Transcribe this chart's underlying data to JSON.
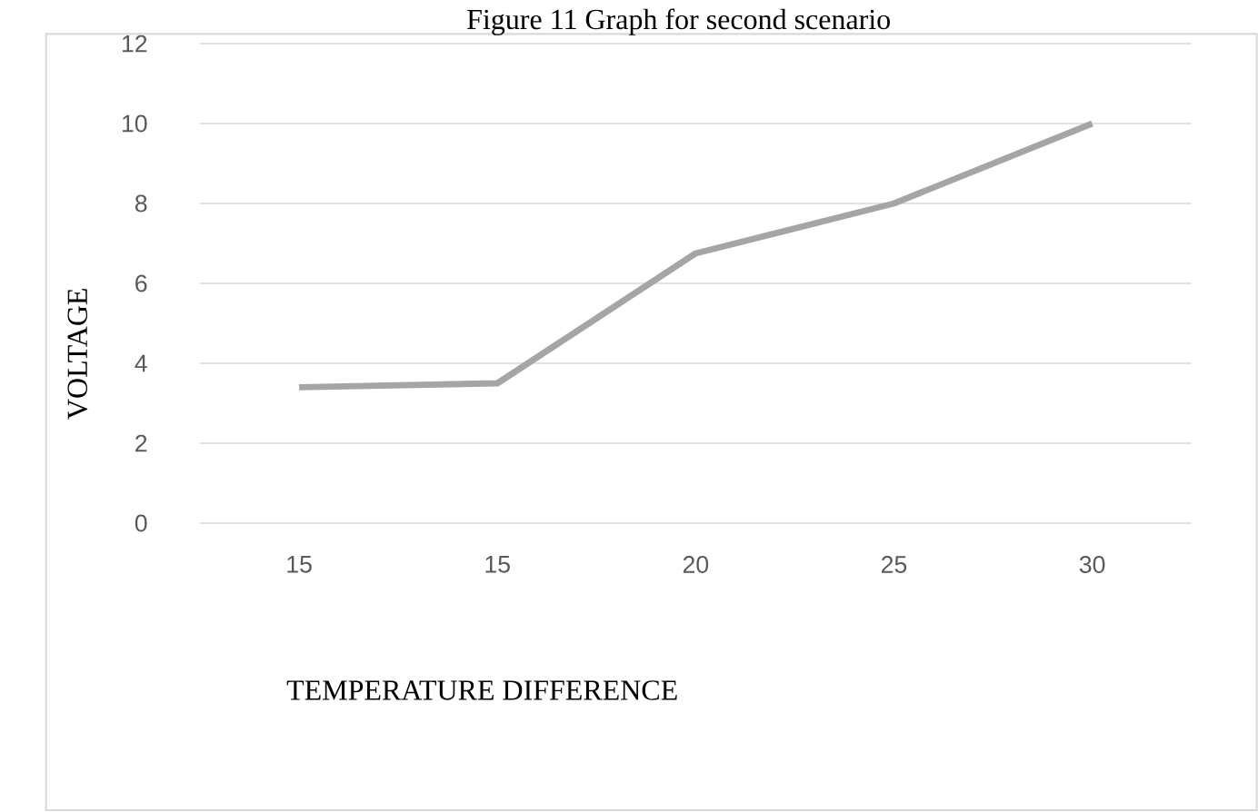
{
  "chart_data": {
    "type": "line",
    "title": "Figure 11 Graph for second scenario",
    "xlabel": "TEMPERATURE DIFFERENCE",
    "ylabel": "VOLTAGE",
    "categories": [
      "15",
      "15",
      "20",
      "25",
      "30"
    ],
    "series": [
      {
        "color": "#a5a5a5",
        "values": [
          3.4,
          3.5,
          6.75,
          8,
          10
        ]
      }
    ],
    "ylim": [
      0,
      12
    ],
    "yticks": [
      0,
      2,
      4,
      6,
      8,
      10,
      12
    ],
    "grid": "y",
    "marker": "none",
    "line_style": "solid"
  }
}
